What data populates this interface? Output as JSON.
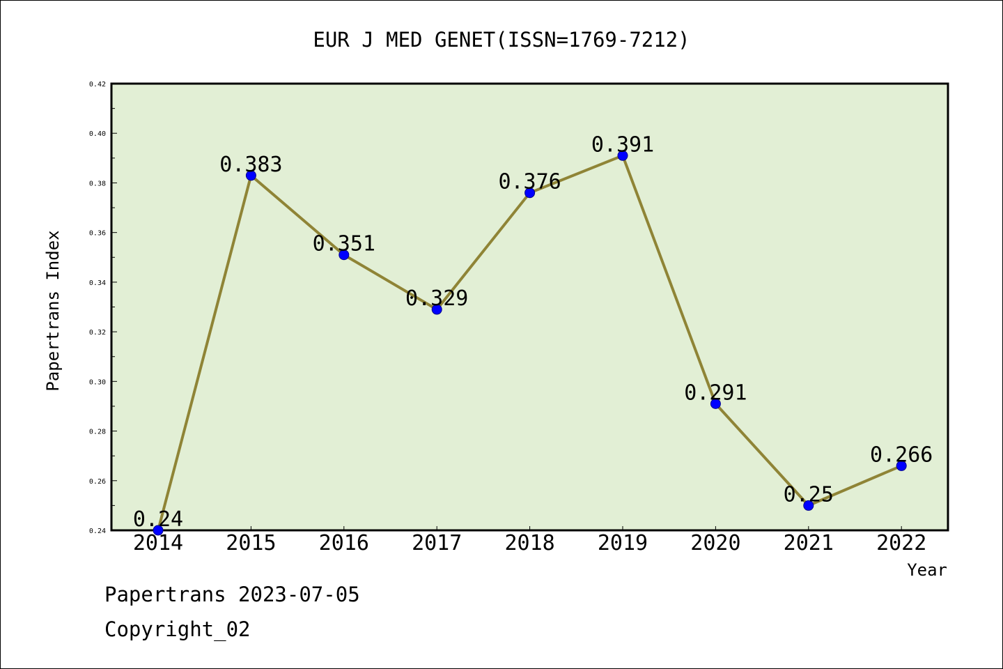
{
  "chart_data": {
    "type": "line",
    "title": "EUR J MED GENET(ISSN=1769-7212)",
    "xlabel": "Year",
    "ylabel": "Papertrans Index",
    "categories": [
      "2014",
      "2015",
      "2016",
      "2017",
      "2018",
      "2019",
      "2020",
      "2021",
      "2022"
    ],
    "values": [
      0.24,
      0.383,
      0.351,
      0.329,
      0.376,
      0.391,
      0.291,
      0.25,
      0.266
    ],
    "data_labels": [
      "0.24",
      "0.383",
      "0.351",
      "0.329",
      "0.376",
      "0.391",
      "0.291",
      "0.25",
      "0.266"
    ],
    "ylim": [
      0.24,
      0.42
    ],
    "yticks": [
      "0.24",
      "0.26",
      "0.28",
      "0.30",
      "0.32",
      "0.34",
      "0.36",
      "0.38",
      "0.40",
      "0.42"
    ],
    "grid": false,
    "legend": "none",
    "colors": {
      "line": "#8f8436",
      "marker": "#0000ff",
      "plot_background": "#e2efd5"
    }
  },
  "footer": {
    "date_line": "Papertrans 2023-07-05",
    "copyright": "Copyright_02"
  }
}
